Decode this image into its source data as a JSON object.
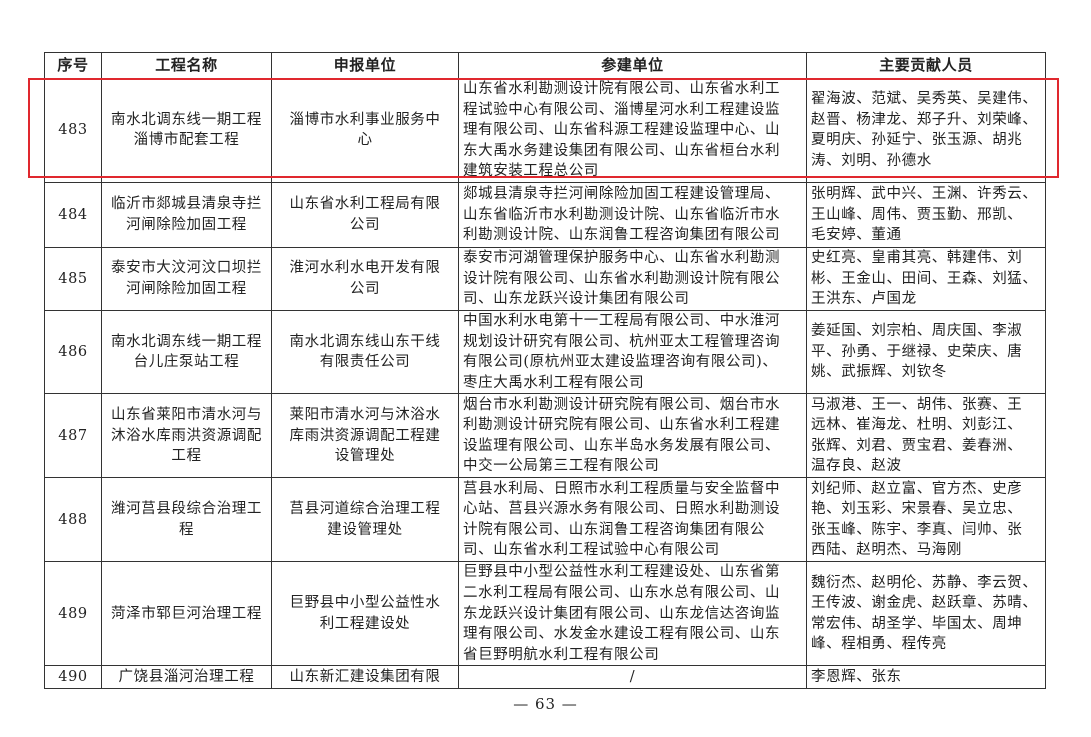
{
  "headers": {
    "no": "序号",
    "project": "工程名称",
    "applicant": "申报单位",
    "participants": "参建单位",
    "contributors": "主要贡献人员"
  },
  "rows": [
    {
      "no": "483",
      "project": "南水北调东线一期工程\n淄博市配套工程",
      "applicant": "淄博市水利事业服务中\n心",
      "participants": "山东省水利勘测设计院有限公司、山东省水利工\n程试验中心有限公司、淄博星河水利工程建设监\n理有限公司、山东省科源工程建设监理中心、山\n东大禹水务建设集团有限公司、山东省桓台水利\n建筑安装工程总公司",
      "contributors": "翟海波、范斌、吴秀英、吴建伟、\n赵晋、杨津龙、郑子升、刘荣峰、\n夏明庆、孙延宁、张玉源、胡兆\n涛、刘明、孙德水",
      "highlighted": true
    },
    {
      "no": "484",
      "project": "临沂市郯城县清泉寺拦\n河闸除险加固工程",
      "applicant": "山东省水利工程局有限\n公司",
      "participants": "郯城县清泉寺拦河闸除险加固工程建设管理局、\n山东省临沂市水利勘测设计院、山东省临沂市水\n利勘测设计院、山东润鲁工程咨询集团有限公司",
      "contributors": "张明辉、武中兴、王渊、许秀云、\n王山峰、周伟、贾玉勤、邢凯、\n毛安婷、董通"
    },
    {
      "no": "485",
      "project": "泰安市大汶河汶口坝拦\n河闸除险加固工程",
      "applicant": "淮河水利水电开发有限\n公司",
      "participants": "泰安市河湖管理保护服务中心、山东省水利勘测\n设计院有限公司、山东省水利勘测设计院有限公\n司、山东龙跃兴设计集团有限公司",
      "contributors": "史红亮、皇甫其亮、韩建伟、刘\n彬、王金山、田间、王森、刘猛、\n王洪东、卢国龙"
    },
    {
      "no": "486",
      "project": "南水北调东线一期工程\n台儿庄泵站工程",
      "applicant": "南水北调东线山东干线\n有限责任公司",
      "participants": "中国水利水电第十一工程局有限公司、中水淮河\n规划设计研究有限公司、杭州亚太工程管理咨询\n有限公司(原杭州亚太建设监理咨询有限公司)、\n枣庄大禹水利工程有限公司",
      "contributors": "姜延国、刘宗柏、周庆国、李淑\n平、孙勇、于继禄、史荣庆、唐\n姚、武振辉、刘钦冬"
    },
    {
      "no": "487",
      "project": "山东省莱阳市清水河与\n沐浴水库雨洪资源调配\n工程",
      "applicant": "莱阳市清水河与沐浴水\n库雨洪资源调配工程建\n设管理处",
      "participants": "烟台市水利勘测设计研究院有限公司、烟台市水\n利勘测设计研究院有限公司、山东省水利工程建\n设监理有限公司、山东半岛水务发展有限公司、\n中交一公局第三工程有限公司",
      "contributors": "马淑港、王一、胡伟、张赛、王\n远林、崔海龙、杜明、刘彭江、\n张辉、刘君、贾宝君、姜春洲、\n温存良、赵波"
    },
    {
      "no": "488",
      "project": "潍河莒县段综合治理工\n程",
      "applicant": "莒县河道综合治理工程\n建设管理处",
      "participants": "莒县水利局、日照市水利工程质量与安全监督中\n心站、莒县兴源水务有限公司、日照水利勘测设\n计院有限公司、山东润鲁工程咨询集团有限公\n司、山东省水利工程试验中心有限公司",
      "contributors": "刘纪师、赵立富、官方杰、史彦\n艳、刘玉彩、宋景春、吴立忠、\n张玉峰、陈宇、李真、闫帅、张\n西陆、赵明杰、马海刚"
    },
    {
      "no": "489",
      "project": "菏泽市郓巨河治理工程",
      "applicant": "巨野县中小型公益性水\n利工程建设处",
      "participants": "巨野县中小型公益性水利工程建设处、山东省第\n二水利工程局有限公司、山东水总有限公司、山\n东龙跃兴设计集团有限公司、山东龙信达咨询监\n理有限公司、水发金水建设工程有限公司、山东\n省巨野明航水利工程有限公司",
      "contributors": "魏衍杰、赵明伦、苏静、李云贺、\n王传波、谢金虎、赵跃章、苏晴、\n常宏伟、胡圣学、毕国太、周坤\n峰、程相勇、程传亮"
    },
    {
      "no": "490",
      "project": "广饶县淄河治理工程",
      "applicant": "山东新汇建设集团有限",
      "participants": "/",
      "contributors": "李恩辉、张东"
    }
  ],
  "highlight_color": "#e0282e",
  "page_number": "— 63 —"
}
